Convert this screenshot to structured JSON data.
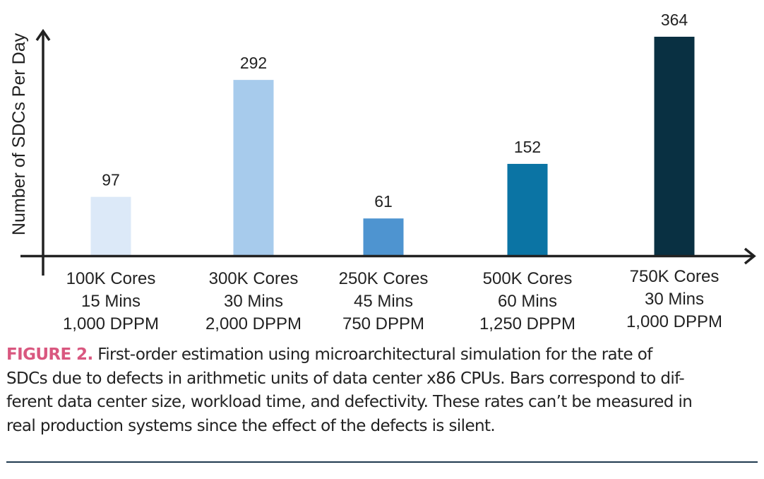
{
  "chart_data": {
    "type": "bar",
    "title": "",
    "xlabel": "",
    "ylabel": "Number of SDCs Per Day",
    "ylim": [
      0,
      400
    ],
    "grid": false,
    "categories": [
      [
        "100K Cores",
        "15 Mins",
        "1,000 DPPM"
      ],
      [
        "300K Cores",
        "30 Mins",
        "2,000 DPPM"
      ],
      [
        "250K Cores",
        "45 Mins",
        "750 DPPM"
      ],
      [
        "500K Cores",
        "60 Mins",
        "1,250 DPPM"
      ],
      [
        "750K Cores",
        "30 Mins",
        "1,000 DPPM"
      ]
    ],
    "values": [
      97,
      292,
      61,
      152,
      364
    ],
    "data_labels": [
      "97",
      "292",
      "61",
      "152",
      "364"
    ],
    "colors": [
      "#dce9f8",
      "#a7cbec",
      "#4e94d0",
      "#0b74a4",
      "#093042"
    ]
  },
  "caption": {
    "label": "FIGURE 2.",
    "text": " First-order estimation using microarchitectural simulation for the rate of SDCs due to defects in arithmetic units of data center x86 CPUs. Bars correspond to different data center size, workload time, and defectivity. These rates can’t be measured in real production systems since the effect of the defects is silent.",
    "lines": [
      " First-order estimation using microarchitectural simulation for the rate of",
      "SDCs due to defects in arithmetic units of data center x86 CPUs. Bars correspond to dif-",
      "ferent data center size, workload time, and defectivity. These rates can’t be measured in",
      "real production systems since the effect of the defects is silent."
    ],
    "label_color": "#d9577f"
  }
}
